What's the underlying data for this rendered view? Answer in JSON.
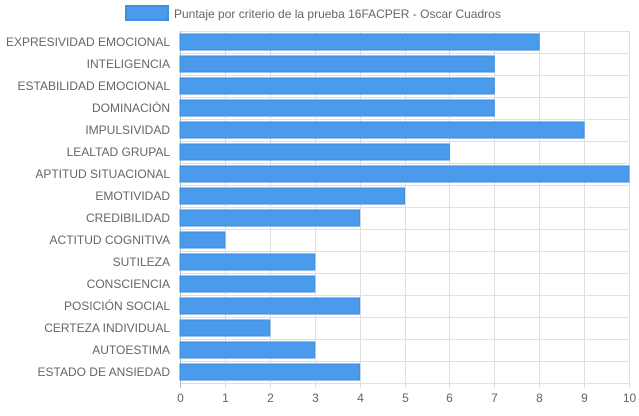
{
  "chart_data": {
    "type": "bar",
    "orientation": "horizontal",
    "categories": [
      "EXPRESIVIDAD EMOCIONAL",
      "INTELIGENCIA",
      "ESTABILIDAD EMOCIONAL",
      "DOMINACIÓN",
      "IMPULSIVIDAD",
      "LEALTAD GRUPAL",
      "APTITUD SITUACIONAL",
      "EMOTIVIDAD",
      "CREDIBILIDAD",
      "ACTITUD COGNITIVA",
      "SUTILEZA",
      "CONSCIENCIA",
      "POSICIÓN SOCIAL",
      "CERTEZA INDIVIDUAL",
      "AUTOESTIMA",
      "ESTADO DE ANSIEDAD"
    ],
    "series": [
      {
        "name": "Puntaje por criterio de la prueba 16FACPER - Oscar Cuadros",
        "values": [
          8,
          7,
          7,
          7,
          9,
          6,
          10,
          5,
          4,
          1,
          3,
          3,
          4,
          2,
          3,
          4
        ],
        "color": "#4a9bec",
        "border_color": "#3f8ee0"
      }
    ],
    "xlim": [
      0,
      10
    ],
    "x_ticks": [
      "0",
      "1",
      "2",
      "3",
      "4",
      "5",
      "6",
      "7",
      "8",
      "9",
      "10"
    ],
    "grid": true,
    "legend_position": "top-center",
    "grid_color": "#e0e0e0",
    "axis_color": "#bdbdbd",
    "label_color": "#666666"
  }
}
